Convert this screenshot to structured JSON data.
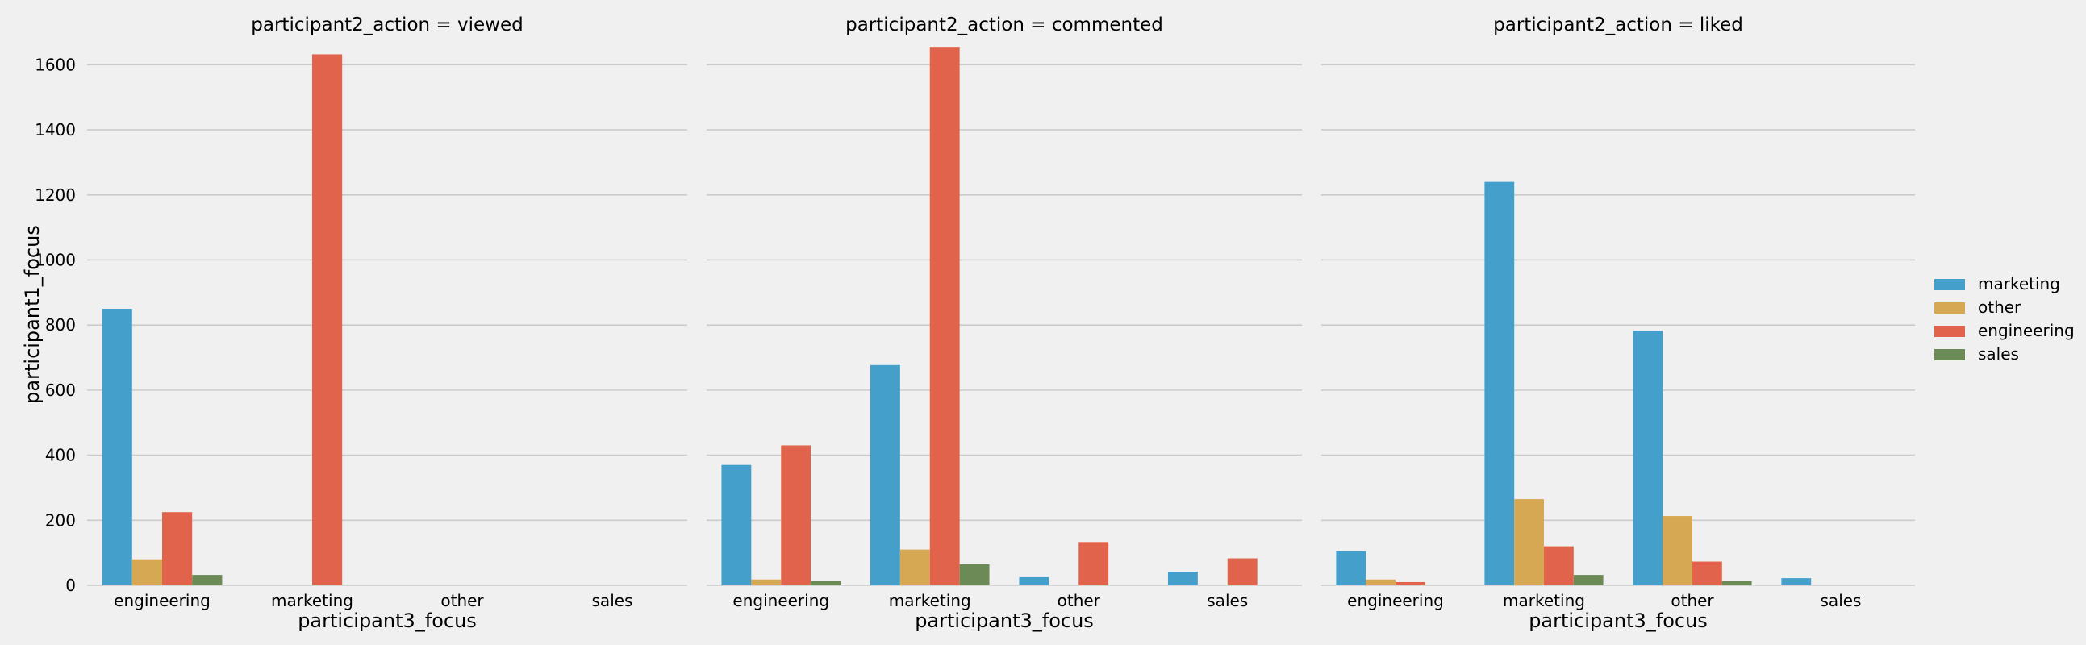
{
  "chart_data": {
    "type": "bar",
    "facet_variable": "participant2_action",
    "xlabel": "participant3_focus",
    "ylabel": "participant1_focus",
    "categories": [
      "engineering",
      "marketing",
      "other",
      "sales"
    ],
    "ylim": [
      0,
      1700
    ],
    "yticks": [
      0,
      200,
      400,
      600,
      800,
      1000,
      1200,
      1400,
      1600
    ],
    "grid": true,
    "legend_position": "right",
    "hue_order": [
      "marketing",
      "other",
      "engineering",
      "sales"
    ],
    "colors": {
      "marketing": "#449fcb",
      "other": "#d6a853",
      "engineering": "#e2634b",
      "sales": "#6c8a56"
    },
    "panels": [
      {
        "title": "participant2_action = viewed",
        "series": [
          {
            "name": "marketing",
            "values": [
              850,
              0,
              0,
              0
            ]
          },
          {
            "name": "other",
            "values": [
              80,
              0,
              0,
              0
            ]
          },
          {
            "name": "engineering",
            "values": [
              225,
              1632,
              0,
              0
            ]
          },
          {
            "name": "sales",
            "values": [
              32,
              0,
              0,
              0
            ]
          }
        ]
      },
      {
        "title": "participant2_action = commented",
        "series": [
          {
            "name": "marketing",
            "values": [
              370,
              677,
              25,
              42
            ]
          },
          {
            "name": "other",
            "values": [
              18,
              110,
              0,
              0
            ]
          },
          {
            "name": "engineering",
            "values": [
              430,
              1655,
              133,
              83
            ]
          },
          {
            "name": "sales",
            "values": [
              14,
              65,
              0,
              0
            ]
          }
        ]
      },
      {
        "title": "participant2_action = liked",
        "series": [
          {
            "name": "marketing",
            "values": [
              105,
              1240,
              783,
              22
            ]
          },
          {
            "name": "other",
            "values": [
              18,
              265,
              213,
              0
            ]
          },
          {
            "name": "engineering",
            "values": [
              10,
              120,
              73,
              0
            ]
          },
          {
            "name": "sales",
            "values": [
              0,
              32,
              14,
              0
            ]
          }
        ]
      }
    ]
  }
}
